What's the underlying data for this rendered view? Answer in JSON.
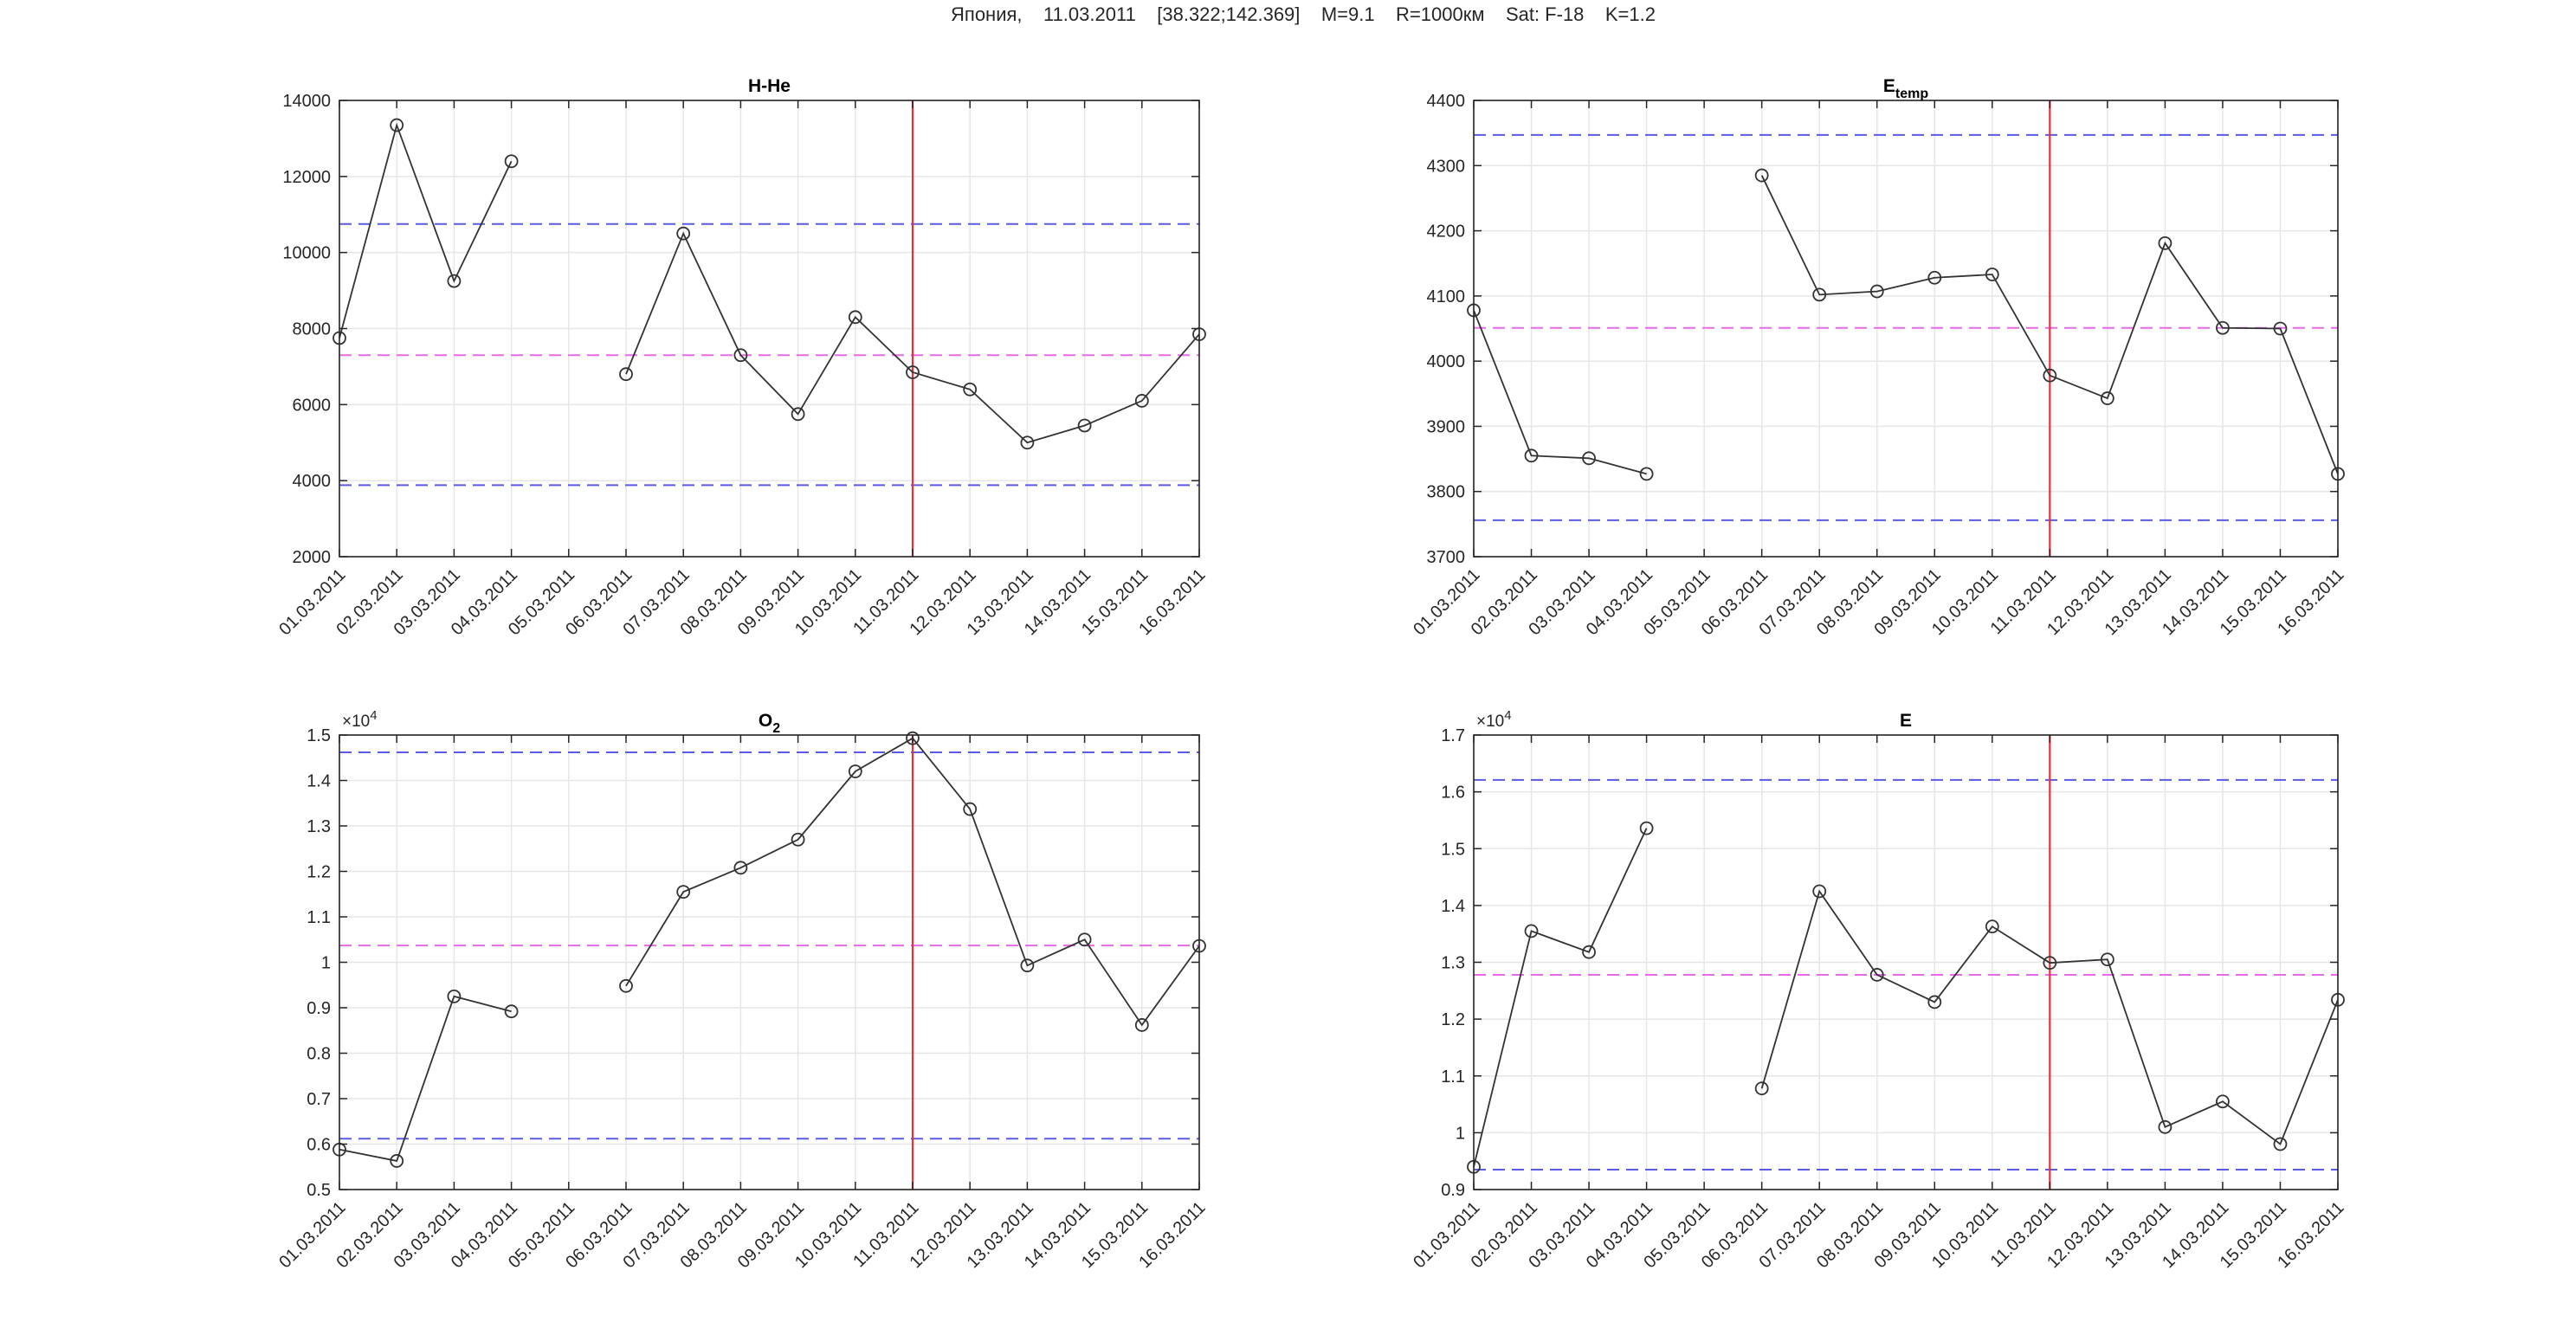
{
  "figure_title": "Япония,    11.03.2011    [38.322;142.369]    M=9.1    R=1000км    Sat: F-18    K=1.2",
  "colors": {
    "data_line": "#333333",
    "event_line": "#e8303a",
    "bound_line": "#5a5ae6",
    "mean_line": "#e86ae8",
    "grid": "#e6e6e6",
    "axis": "#262626"
  },
  "chart_data": [
    {
      "type": "line",
      "title": "H-He",
      "title_sub": "",
      "categories": [
        "01.03.2011",
        "02.03.2011",
        "03.03.2011",
        "04.03.2011",
        "05.03.2011",
        "06.03.2011",
        "07.03.2011",
        "08.03.2011",
        "09.03.2011",
        "10.03.2011",
        "11.03.2011",
        "12.03.2011",
        "13.03.2011",
        "14.03.2011",
        "15.03.2011",
        "16.03.2011"
      ],
      "values": [
        7750,
        13350,
        9250,
        12400,
        null,
        6800,
        10500,
        7300,
        5750,
        8300,
        6850,
        6400,
        5000,
        5450,
        6100,
        7850
      ],
      "ylim": [
        2000,
        14000
      ],
      "yticks": [
        2000,
        4000,
        6000,
        8000,
        10000,
        12000,
        14000
      ],
      "ytick_labels": [
        "2000",
        "4000",
        "6000",
        "8000",
        "10000",
        "12000",
        "14000"
      ],
      "exponent_label": "",
      "event_x": "11.03.2011",
      "upper_bound": 10750,
      "mean": 7300,
      "lower_bound": 3880,
      "grid": true
    },
    {
      "type": "line",
      "title": "E",
      "title_sub": "temp",
      "categories": [
        "01.03.2011",
        "02.03.2011",
        "03.03.2011",
        "04.03.2011",
        "05.03.2011",
        "06.03.2011",
        "07.03.2011",
        "08.03.2011",
        "09.03.2011",
        "10.03.2011",
        "11.03.2011",
        "12.03.2011",
        "13.03.2011",
        "14.03.2011",
        "15.03.2011",
        "16.03.2011"
      ],
      "values": [
        4078,
        3855,
        3851,
        3827,
        null,
        4285,
        4102,
        4107,
        4128,
        4133,
        3978,
        3943,
        4181,
        4051,
        4050,
        3827
      ],
      "ylim": [
        3700,
        4400
      ],
      "yticks": [
        3700,
        3800,
        3900,
        4000,
        4100,
        4200,
        4300,
        4400
      ],
      "ytick_labels": [
        "3700",
        "3800",
        "3900",
        "4000",
        "4100",
        "4200",
        "4300",
        "4400"
      ],
      "exponent_label": "",
      "event_x": "11.03.2011",
      "upper_bound": 4347,
      "mean": 4051,
      "lower_bound": 3756,
      "grid": true
    },
    {
      "type": "line",
      "title": "O",
      "title_sub": "2",
      "categories": [
        "01.03.2011",
        "02.03.2011",
        "03.03.2011",
        "04.03.2011",
        "05.03.2011",
        "06.03.2011",
        "07.03.2011",
        "08.03.2011",
        "09.03.2011",
        "10.03.2011",
        "11.03.2011",
        "12.03.2011",
        "13.03.2011",
        "14.03.2011",
        "15.03.2011",
        "16.03.2011"
      ],
      "values": [
        0.588,
        0.563,
        0.925,
        0.892,
        null,
        0.948,
        1.155,
        1.208,
        1.27,
        1.42,
        1.493,
        1.337,
        0.993,
        1.05,
        0.862,
        1.036
      ],
      "ylim": [
        0.5,
        1.5
      ],
      "yticks": [
        0.5,
        0.6,
        0.7,
        0.8,
        0.9,
        1.0,
        1.1,
        1.2,
        1.3,
        1.4,
        1.5
      ],
      "ytick_labels": [
        "0.5",
        "0.6",
        "0.7",
        "0.8",
        "0.9",
        "1",
        "1.1",
        "1.2",
        "1.3",
        "1.4",
        "1.5"
      ],
      "exponent_label": "×10",
      "exponent_power": "4",
      "event_x": "11.03.2011",
      "upper_bound": 1.462,
      "mean": 1.037,
      "lower_bound": 0.612,
      "grid": true
    },
    {
      "type": "line",
      "title": "E",
      "title_sub": "",
      "categories": [
        "01.03.2011",
        "02.03.2011",
        "03.03.2011",
        "04.03.2011",
        "05.03.2011",
        "06.03.2011",
        "07.03.2011",
        "08.03.2011",
        "09.03.2011",
        "10.03.2011",
        "11.03.2011",
        "12.03.2011",
        "13.03.2011",
        "14.03.2011",
        "15.03.2011",
        "16.03.2011"
      ],
      "values": [
        0.94,
        1.355,
        1.318,
        1.536,
        null,
        1.078,
        1.425,
        1.278,
        1.23,
        1.363,
        1.299,
        1.305,
        1.01,
        1.055,
        0.98,
        1.234
      ],
      "ylim": [
        0.9,
        1.7
      ],
      "yticks": [
        0.9,
        1.0,
        1.1,
        1.2,
        1.3,
        1.4,
        1.5,
        1.6,
        1.7
      ],
      "ytick_labels": [
        "0.9",
        "1",
        "1.1",
        "1.2",
        "1.3",
        "1.4",
        "1.5",
        "1.6",
        "1.7"
      ],
      "exponent_label": "×10",
      "exponent_power": "4",
      "event_x": "11.03.2011",
      "upper_bound": 1.621,
      "mean": 1.278,
      "lower_bound": 0.935,
      "grid": true
    }
  ]
}
